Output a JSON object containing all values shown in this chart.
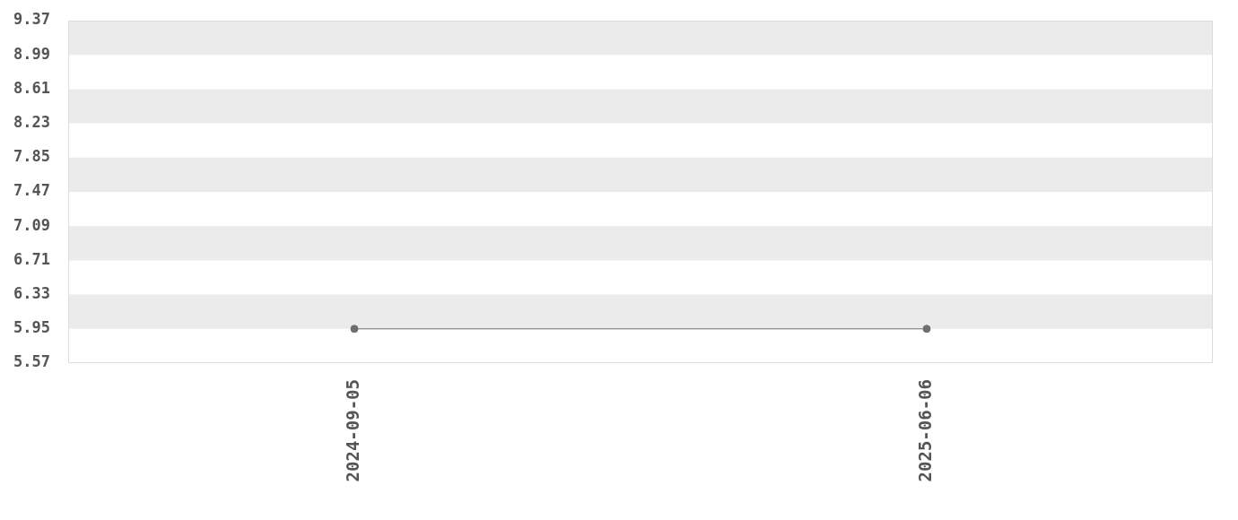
{
  "chart_data": {
    "type": "line",
    "categories": [
      "2024-09-05",
      "2025-06-06"
    ],
    "series": [
      {
        "color": "#6e6e6e",
        "values": [
          5.95,
          5.95
        ]
      }
    ],
    "ylim": [
      5.57,
      9.37
    ],
    "yticks": [
      5.57,
      5.95,
      6.33,
      6.71,
      7.09,
      7.47,
      7.85,
      8.23,
      8.61,
      8.99,
      9.37
    ],
    "bands": [
      {
        "axis": "y",
        "from": 5.95,
        "to": 6.33,
        "color": "#ebebeb"
      },
      {
        "axis": "y",
        "from": 6.71,
        "to": 7.09,
        "color": "#ebebeb"
      },
      {
        "axis": "y",
        "from": 7.47,
        "to": 7.85,
        "color": "#ebebeb"
      },
      {
        "axis": "y",
        "from": 8.23,
        "to": 8.61,
        "color": "#ebebeb"
      },
      {
        "axis": "y",
        "from": 8.99,
        "to": 9.37,
        "color": "#ebebeb"
      }
    ],
    "marker": "circle",
    "legend": false
  }
}
